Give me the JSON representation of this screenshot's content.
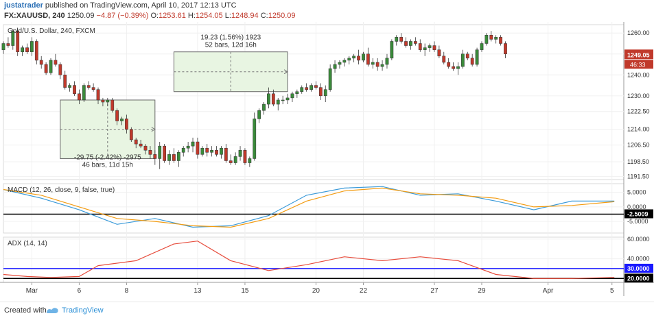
{
  "header": {
    "user": "justatrader",
    "published_text": "published on TradingView.com, April 10, 2017 12:13 UTC",
    "symbol": "FX:XAUUSD, 240",
    "last": "1250.09",
    "change": "−4.87 (−0.39%)",
    "o_label": "O:",
    "o": "1253.61",
    "h_label": "H:",
    "h": "1254.05",
    "l_label": "L:",
    "l": "1248.94",
    "c_label": "C:",
    "c": "1250.09"
  },
  "footer": {
    "created_with": "Created with",
    "brand": "TradingView"
  },
  "colors": {
    "up": "#3a8a3a",
    "down": "#c0392b",
    "macd": "#3a9ad9",
    "signal": "#f39c12",
    "adx": "#e74c3c",
    "level_blue": "#1a1aff",
    "box_fill": "#e8f5e2"
  },
  "chart_data": [
    {
      "type": "candlestick",
      "title": "Gold/U.S. Dollar, 240, FXCM",
      "y_ticks": [
        1191.5,
        1198.5,
        1206.5,
        1214.0,
        1222.5,
        1230.0,
        1240.0,
        1250.0,
        1260.0
      ],
      "ylim": [
        1190,
        1264
      ],
      "price_label": "1249.05",
      "countdown_label": "46:33",
      "x_ticks": [
        {
          "label": "Mar",
          "x": 12
        },
        {
          "label": "6",
          "x": 32
        },
        {
          "label": "8",
          "x": 52
        },
        {
          "label": "13",
          "x": 82
        },
        {
          "label": "15",
          "x": 102
        },
        {
          "label": "20",
          "x": 132
        },
        {
          "label": "22",
          "x": 152
        },
        {
          "label": "27",
          "x": 182
        },
        {
          "label": "29",
          "x": 202
        },
        {
          "label": "Apr",
          "x": 230
        },
        {
          "label": "5",
          "x": 257
        }
      ],
      "x_range": [
        0,
        262
      ],
      "candles": [
        [
          0,
          1252,
          1256,
          1250,
          1255
        ],
        [
          2,
          1255,
          1258,
          1253,
          1254
        ],
        [
          4,
          1254,
          1262,
          1252,
          1261
        ],
        [
          6,
          1261,
          1262,
          1249,
          1251
        ],
        [
          8,
          1251,
          1254,
          1249,
          1253
        ],
        [
          10,
          1253,
          1255,
          1250,
          1251
        ],
        [
          12,
          1251,
          1258,
          1249,
          1256
        ],
        [
          14,
          1256,
          1257,
          1245,
          1247
        ],
        [
          16,
          1247,
          1249,
          1243,
          1245
        ],
        [
          18,
          1245,
          1246,
          1240,
          1241
        ],
        [
          20,
          1241,
          1248,
          1240,
          1247
        ],
        [
          22,
          1247,
          1250,
          1244,
          1245
        ],
        [
          24,
          1245,
          1246,
          1238,
          1240
        ],
        [
          26,
          1240,
          1242,
          1233,
          1234
        ],
        [
          28,
          1234,
          1236,
          1232,
          1235
        ],
        [
          30,
          1235,
          1237,
          1230,
          1231
        ],
        [
          32,
          1231,
          1233,
          1226,
          1228
        ],
        [
          34,
          1228,
          1236,
          1227,
          1235
        ],
        [
          36,
          1235,
          1237,
          1233,
          1234
        ],
        [
          38,
          1234,
          1236,
          1232,
          1233
        ],
        [
          40,
          1233,
          1234,
          1226,
          1228
        ],
        [
          42,
          1228,
          1229,
          1225,
          1227
        ],
        [
          44,
          1227,
          1229,
          1225,
          1228
        ],
        [
          46,
          1228,
          1229,
          1222,
          1223
        ],
        [
          48,
          1223,
          1224,
          1216,
          1218
        ],
        [
          50,
          1218,
          1220,
          1216,
          1219
        ],
        [
          52,
          1219,
          1221,
          1212,
          1214
        ],
        [
          54,
          1214,
          1215,
          1208,
          1209
        ],
        [
          56,
          1209,
          1210,
          1205,
          1207
        ],
        [
          58,
          1207,
          1209,
          1205,
          1206
        ],
        [
          60,
          1206,
          1207,
          1202,
          1204
        ],
        [
          62,
          1204,
          1206,
          1200,
          1202
        ],
        [
          64,
          1202,
          1204,
          1197,
          1200
        ],
        [
          66,
          1200,
          1208,
          1195,
          1206
        ],
        [
          68,
          1206,
          1207,
          1198,
          1199
        ],
        [
          70,
          1199,
          1204,
          1197,
          1202
        ],
        [
          72,
          1202,
          1205,
          1198,
          1199
        ],
        [
          74,
          1199,
          1204,
          1196,
          1203
        ],
        [
          76,
          1203,
          1206,
          1201,
          1205
        ],
        [
          78,
          1205,
          1208,
          1203,
          1206
        ],
        [
          80,
          1206,
          1210,
          1203,
          1208
        ],
        [
          82,
          1208,
          1210,
          1200,
          1202
        ],
        [
          84,
          1202,
          1206,
          1201,
          1205
        ],
        [
          86,
          1205,
          1207,
          1201,
          1203
        ],
        [
          88,
          1203,
          1206,
          1201,
          1204
        ],
        [
          90,
          1204,
          1206,
          1201,
          1202
        ],
        [
          92,
          1202,
          1206,
          1200,
          1205
        ],
        [
          94,
          1205,
          1207,
          1198,
          1199
        ],
        [
          96,
          1199,
          1202,
          1197,
          1198
        ],
        [
          98,
          1198,
          1203,
          1197,
          1201
        ],
        [
          100,
          1201,
          1206,
          1199,
          1204
        ],
        [
          102,
          1204,
          1205,
          1197,
          1198
        ],
        [
          104,
          1198,
          1201,
          1196,
          1200
        ],
        [
          106,
          1200,
          1222,
          1199,
          1219
        ],
        [
          108,
          1219,
          1224,
          1217,
          1223
        ],
        [
          110,
          1223,
          1227,
          1221,
          1226
        ],
        [
          112,
          1226,
          1234,
          1224,
          1231
        ],
        [
          114,
          1231,
          1233,
          1225,
          1226
        ],
        [
          116,
          1226,
          1229,
          1223,
          1228
        ],
        [
          118,
          1228,
          1230,
          1226,
          1228
        ],
        [
          120,
          1228,
          1231,
          1226,
          1229
        ],
        [
          122,
          1229,
          1232,
          1227,
          1231
        ],
        [
          124,
          1231,
          1233,
          1229,
          1232
        ],
        [
          126,
          1232,
          1235,
          1231,
          1234
        ],
        [
          128,
          1234,
          1236,
          1232,
          1233
        ],
        [
          130,
          1233,
          1236,
          1232,
          1235
        ],
        [
          132,
          1235,
          1237,
          1233,
          1234
        ],
        [
          134,
          1234,
          1236,
          1228,
          1230
        ],
        [
          136,
          1230,
          1235,
          1227,
          1233
        ],
        [
          138,
          1233,
          1245,
          1232,
          1243
        ],
        [
          140,
          1243,
          1247,
          1241,
          1245
        ],
        [
          142,
          1245,
          1247,
          1243,
          1246
        ],
        [
          144,
          1246,
          1248,
          1244,
          1247
        ],
        [
          146,
          1247,
          1249,
          1245,
          1248
        ],
        [
          148,
          1248,
          1250,
          1246,
          1249
        ],
        [
          150,
          1249,
          1252,
          1245,
          1247
        ],
        [
          152,
          1247,
          1251,
          1246,
          1250
        ],
        [
          154,
          1250,
          1253,
          1244,
          1245
        ],
        [
          156,
          1245,
          1248,
          1243,
          1246
        ],
        [
          158,
          1246,
          1248,
          1242,
          1244
        ],
        [
          160,
          1244,
          1247,
          1242,
          1245
        ],
        [
          162,
          1245,
          1250,
          1243,
          1248
        ],
        [
          164,
          1248,
          1257,
          1247,
          1256
        ],
        [
          166,
          1256,
          1259,
          1254,
          1258
        ],
        [
          168,
          1258,
          1260,
          1255,
          1256
        ],
        [
          170,
          1256,
          1258,
          1253,
          1254
        ],
        [
          172,
          1254,
          1257,
          1252,
          1256
        ],
        [
          174,
          1256,
          1258,
          1254,
          1255
        ],
        [
          176,
          1255,
          1257,
          1251,
          1252
        ],
        [
          178,
          1252,
          1255,
          1249,
          1253
        ],
        [
          180,
          1253,
          1255,
          1251,
          1254
        ],
        [
          182,
          1254,
          1256,
          1251,
          1252
        ],
        [
          184,
          1252,
          1254,
          1248,
          1249
        ],
        [
          186,
          1249,
          1251,
          1245,
          1246
        ],
        [
          188,
          1246,
          1248,
          1243,
          1244
        ],
        [
          190,
          1244,
          1246,
          1242,
          1243
        ],
        [
          192,
          1243,
          1246,
          1240,
          1244
        ],
        [
          194,
          1244,
          1252,
          1243,
          1250
        ],
        [
          196,
          1250,
          1251,
          1247,
          1248
        ],
        [
          198,
          1248,
          1250,
          1244,
          1245
        ],
        [
          200,
          1245,
          1253,
          1244,
          1252
        ],
        [
          202,
          1252,
          1256,
          1251,
          1255
        ],
        [
          204,
          1255,
          1260,
          1254,
          1259
        ],
        [
          206,
          1259,
          1261,
          1256,
          1257
        ],
        [
          208,
          1257,
          1259,
          1255,
          1258
        ],
        [
          210,
          1258,
          1259,
          1254,
          1255
        ],
        [
          212,
          1255,
          1256,
          1248,
          1250
        ]
      ],
      "annotations": [
        {
          "type": "range_box",
          "x0": 24,
          "x1": 64,
          "y0": 1200,
          "y1": 1228,
          "label_line1": "-29.75 (-2.42%) -2975",
          "label_line2": "46 bars, 11d 15h",
          "label_pos": "bottom"
        },
        {
          "type": "range_box",
          "x0": 72,
          "x1": 120,
          "y0": 1232,
          "y1": 1251,
          "label_line1": "19.23 (1.56%) 1923",
          "label_line2": "52 bars, 12d 16h",
          "label_pos": "top"
        }
      ]
    },
    {
      "type": "line",
      "title": "MACD (12, 26, close, 9, false, true)",
      "y_ticks": [
        5.0,
        0.0,
        -5.0
      ],
      "ylim": [
        -9,
        8
      ],
      "level_label": "-2.5009",
      "level": -2.5009,
      "series": [
        {
          "name": "MACD",
          "x": [
            0,
            16,
            32,
            48,
            64,
            80,
            96,
            112,
            128,
            144,
            160,
            176,
            192,
            208,
            224,
            240,
            258
          ],
          "values": [
            6,
            3,
            -1,
            -6,
            -4,
            -7,
            -6.5,
            -3,
            4,
            6.5,
            7,
            4,
            4.5,
            2,
            -1,
            2,
            2
          ]
        },
        {
          "name": "Signal",
          "x": [
            0,
            16,
            32,
            48,
            64,
            80,
            96,
            112,
            128,
            144,
            160,
            176,
            192,
            208,
            224,
            240,
            258
          ],
          "values": [
            6,
            4,
            0,
            -4,
            -5,
            -6.5,
            -7,
            -4,
            2,
            5.5,
            6.5,
            4.5,
            4,
            3,
            0,
            0.5,
            1.8
          ]
        }
      ]
    },
    {
      "type": "line",
      "title": "ADX (14, 14)",
      "y_ticks": [
        60.0,
        40.0,
        20.0
      ],
      "ylim": [
        16,
        62
      ],
      "levels": [
        {
          "value": 30.0,
          "label": "30.0000"
        },
        {
          "value": 20.0,
          "label": "20.0000"
        }
      ],
      "series": [
        {
          "name": "ADX",
          "x": [
            0,
            10,
            20,
            32,
            40,
            56,
            72,
            82,
            96,
            112,
            128,
            144,
            160,
            176,
            192,
            208,
            224,
            240,
            258
          ],
          "values": [
            24,
            22,
            21,
            22,
            33,
            38,
            55,
            58,
            38,
            28,
            34,
            42,
            38,
            42,
            38,
            24,
            20,
            20,
            21
          ]
        }
      ]
    }
  ]
}
